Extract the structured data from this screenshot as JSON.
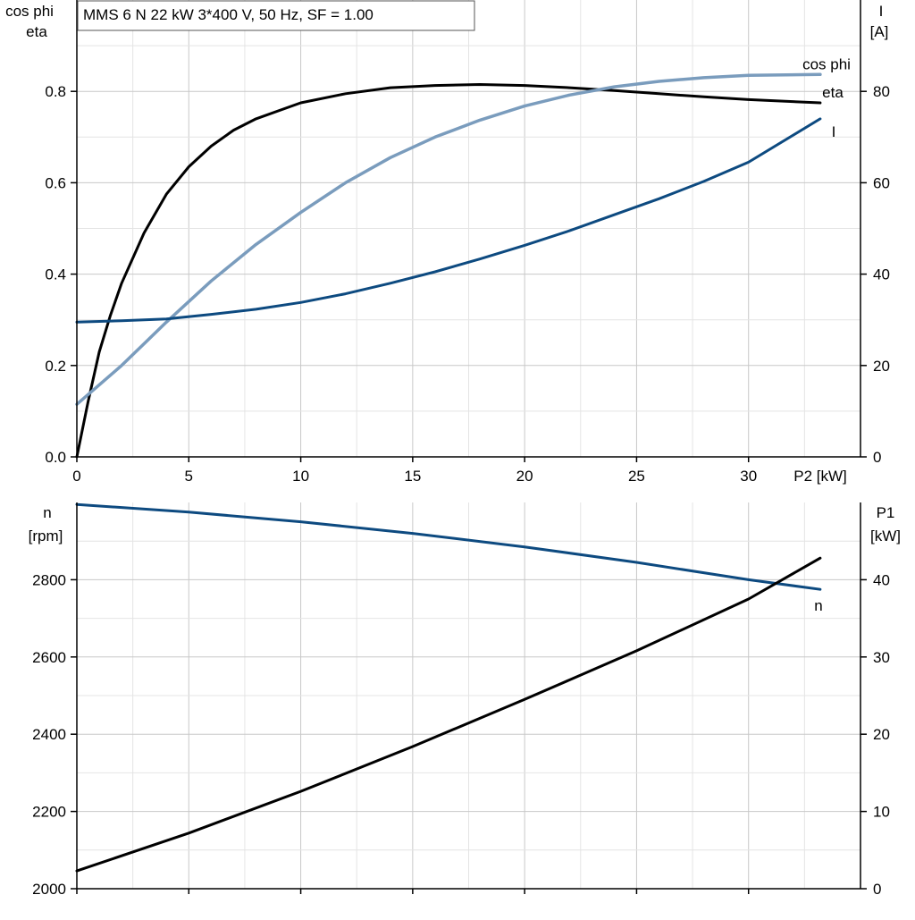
{
  "title": "MMS 6 N   22 kW   3*400 V, 50 Hz, SF = 1.00",
  "colors": {
    "eta": "#000000",
    "cos_phi": "#7a9cbd",
    "current": "#0d4a80",
    "speed": "#0d4a80",
    "p1": "#000000"
  },
  "chart_data": [
    {
      "type": "line",
      "xlabel": "P2 [kW]",
      "xlim": [
        0,
        35
      ],
      "xticks": [
        "0",
        "5",
        "10",
        "15",
        "20",
        "25",
        "30"
      ],
      "ylabel_left": [
        "cos phi",
        "eta"
      ],
      "ylim_left": [
        0,
        1.0
      ],
      "yticks_left": [
        "0.0",
        "0.2",
        "0.4",
        "0.6",
        "0.8"
      ],
      "ylabel_right": [
        "I",
        "[A]"
      ],
      "ylim_right": [
        0,
        100
      ],
      "yticks_right": [
        "0",
        "20",
        "40",
        "60",
        "80"
      ],
      "grid": true,
      "series": [
        {
          "name": "eta",
          "axis": "left",
          "points": [
            [
              0,
              0
            ],
            [
              0.5,
              0.12
            ],
            [
              1,
              0.23
            ],
            [
              1.5,
              0.31
            ],
            [
              2,
              0.38
            ],
            [
              3,
              0.49
            ],
            [
              4,
              0.575
            ],
            [
              5,
              0.635
            ],
            [
              6,
              0.68
            ],
            [
              7,
              0.715
            ],
            [
              8,
              0.74
            ],
            [
              10,
              0.775
            ],
            [
              12,
              0.795
            ],
            [
              14,
              0.808
            ],
            [
              16,
              0.813
            ],
            [
              18,
              0.815
            ],
            [
              20,
              0.813
            ],
            [
              22,
              0.808
            ],
            [
              24,
              0.802
            ],
            [
              26,
              0.795
            ],
            [
              28,
              0.788
            ],
            [
              30,
              0.782
            ],
            [
              33.2,
              0.775
            ]
          ]
        },
        {
          "name": "cos phi",
          "axis": "left",
          "points": [
            [
              0,
              0.115
            ],
            [
              2,
              0.2
            ],
            [
              4,
              0.295
            ],
            [
              6,
              0.385
            ],
            [
              8,
              0.465
            ],
            [
              10,
              0.535
            ],
            [
              12,
              0.6
            ],
            [
              14,
              0.655
            ],
            [
              16,
              0.7
            ],
            [
              18,
              0.737
            ],
            [
              20,
              0.768
            ],
            [
              22,
              0.792
            ],
            [
              24,
              0.81
            ],
            [
              26,
              0.822
            ],
            [
              28,
              0.83
            ],
            [
              30,
              0.835
            ],
            [
              33.2,
              0.837
            ]
          ]
        },
        {
          "name": "I",
          "axis": "right",
          "points": [
            [
              0,
              29.5
            ],
            [
              2,
              29.8
            ],
            [
              4,
              30.2
            ],
            [
              6,
              31.2
            ],
            [
              8,
              32.3
            ],
            [
              10,
              33.8
            ],
            [
              12,
              35.7
            ],
            [
              14,
              38
            ],
            [
              16,
              40.5
            ],
            [
              18,
              43.3
            ],
            [
              20,
              46.3
            ],
            [
              22,
              49.5
            ],
            [
              24,
              53
            ],
            [
              26,
              56.5
            ],
            [
              28,
              60.3
            ],
            [
              30,
              64.5
            ],
            [
              33.2,
              74
            ]
          ]
        }
      ]
    },
    {
      "type": "line",
      "xlim": [
        0,
        35
      ],
      "ylabel_left": [
        "n",
        "[rpm]"
      ],
      "ylim_left": [
        2000,
        3000
      ],
      "yticks_left": [
        "2000",
        "2200",
        "2400",
        "2600",
        "2800"
      ],
      "ylabel_right": [
        "P1",
        "[kW]"
      ],
      "ylim_right": [
        0,
        50
      ],
      "yticks_right": [
        "0",
        "10",
        "20",
        "30",
        "40"
      ],
      "grid": true,
      "series": [
        {
          "name": "n",
          "axis": "left",
          "points": [
            [
              0,
              2995
            ],
            [
              5,
              2975
            ],
            [
              10,
              2950
            ],
            [
              15,
              2920
            ],
            [
              20,
              2885
            ],
            [
              25,
              2845
            ],
            [
              30,
              2800
            ],
            [
              33.2,
              2775
            ]
          ]
        },
        {
          "name": "",
          "axis": "right",
          "points": [
            [
              0,
              2.3
            ],
            [
              5,
              7.2
            ],
            [
              10,
              12.6
            ],
            [
              15,
              18.4
            ],
            [
              20,
              24.5
            ],
            [
              25,
              30.8
            ],
            [
              30,
              37.5
            ],
            [
              33.2,
              42.8
            ]
          ]
        }
      ]
    }
  ]
}
